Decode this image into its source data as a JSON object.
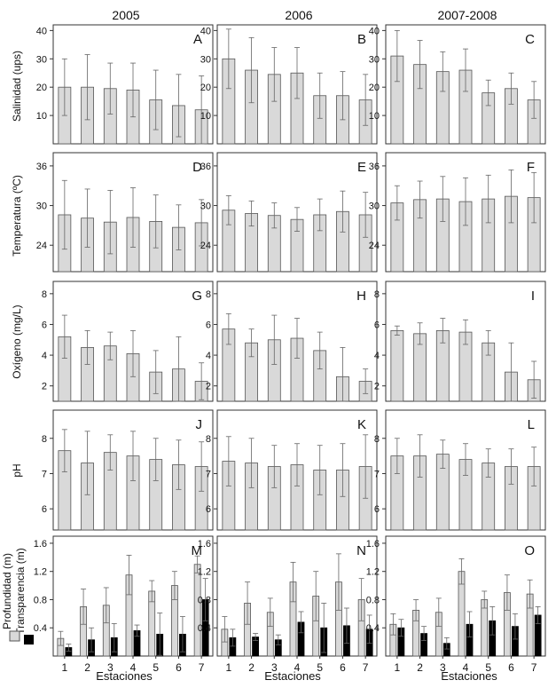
{
  "columns": [
    "2005",
    "2006",
    "2007-2008"
  ],
  "row_labels": [
    "Salinidad (ups)",
    "Temperatura (ºC)",
    "Oxígeno (mg/L)",
    "pH",
    [
      "Profundidad (m)",
      "Transparencia (m)"
    ]
  ],
  "x_title": "Estaciones",
  "colors": {
    "bar_light": "#d9d9d9",
    "bar_dark": "#000000",
    "stroke": "#555555"
  },
  "chart_data": [
    {
      "id": "A",
      "type": "bar",
      "row": 0,
      "col": 0,
      "ylim": [
        0,
        42
      ],
      "yticks": [
        10,
        20,
        30,
        40
      ],
      "categories": [
        "1",
        "2",
        "3",
        "4",
        "5",
        "6",
        "7"
      ],
      "series": [
        {
          "values": [
            20,
            20,
            19.5,
            19,
            15.5,
            13.5,
            12
          ],
          "errors": [
            10,
            11.5,
            9,
            9.5,
            10.5,
            11,
            12
          ]
        }
      ]
    },
    {
      "id": "B",
      "type": "bar",
      "row": 0,
      "col": 1,
      "ylim": [
        0,
        42
      ],
      "yticks": [
        10,
        20,
        30,
        40
      ],
      "categories": [
        "1",
        "2",
        "3",
        "4",
        "5",
        "6",
        "7"
      ],
      "series": [
        {
          "values": [
            30,
            26,
            24.5,
            25,
            17,
            17,
            15.5
          ],
          "errors": [
            10.5,
            11.5,
            9.5,
            9,
            8,
            8.5,
            9
          ]
        }
      ]
    },
    {
      "id": "C",
      "type": "bar",
      "row": 0,
      "col": 2,
      "ylim": [
        0,
        42
      ],
      "yticks": [
        10,
        20,
        30,
        40
      ],
      "categories": [
        "1",
        "2",
        "3",
        "4",
        "5",
        "6",
        "7"
      ],
      "series": [
        {
          "values": [
            31,
            28,
            25.5,
            26,
            18,
            19.5,
            15.5
          ],
          "errors": [
            9,
            8.5,
            7,
            7.5,
            4.5,
            5.5,
            6.5
          ]
        }
      ]
    },
    {
      "id": "D",
      "type": "bar",
      "row": 1,
      "col": 0,
      "ylim": [
        20,
        38
      ],
      "yticks": [
        24,
        30,
        36
      ],
      "categories": [
        "1",
        "2",
        "3",
        "4",
        "5",
        "6",
        "7"
      ],
      "series": [
        {
          "values": [
            28.6,
            28.1,
            27.5,
            28.2,
            27.6,
            26.7,
            27.4
          ],
          "errors": [
            5.2,
            4.4,
            4.8,
            4.5,
            4.0,
            3.4,
            3.5
          ]
        }
      ]
    },
    {
      "id": "E",
      "type": "bar",
      "row": 1,
      "col": 1,
      "ylim": [
        20,
        38
      ],
      "yticks": [
        24,
        30,
        36
      ],
      "categories": [
        "1",
        "2",
        "3",
        "4",
        "5",
        "6",
        "7"
      ],
      "series": [
        {
          "values": [
            29.3,
            28.8,
            28.5,
            27.9,
            28.6,
            29.1,
            28.6
          ],
          "errors": [
            2.2,
            1.9,
            1.9,
            1.8,
            2.4,
            3.1,
            3.4
          ]
        }
      ]
    },
    {
      "id": "F",
      "type": "bar",
      "row": 1,
      "col": 2,
      "ylim": [
        20,
        38
      ],
      "yticks": [
        24,
        30,
        36
      ],
      "categories": [
        "1",
        "2",
        "3",
        "4",
        "5",
        "6",
        "7"
      ],
      "series": [
        {
          "values": [
            30.4,
            30.9,
            31.0,
            30.6,
            31.0,
            31.4,
            31.2
          ],
          "errors": [
            2.6,
            2.8,
            3.4,
            3.6,
            3.6,
            4.0,
            3.8
          ]
        }
      ]
    },
    {
      "id": "G",
      "type": "bar",
      "row": 2,
      "col": 0,
      "ylim": [
        1,
        8.8
      ],
      "yticks": [
        2,
        4,
        6,
        8
      ],
      "categories": [
        "1",
        "2",
        "3",
        "4",
        "5",
        "6",
        "7"
      ],
      "series": [
        {
          "values": [
            5.2,
            4.5,
            4.6,
            4.1,
            2.9,
            3.1,
            2.3
          ],
          "errors": [
            1.4,
            1.1,
            0.9,
            1.5,
            1.4,
            2.1,
            1.2
          ]
        }
      ]
    },
    {
      "id": "H",
      "type": "bar",
      "row": 2,
      "col": 1,
      "ylim": [
        1,
        8.8
      ],
      "yticks": [
        2,
        4,
        6,
        8
      ],
      "categories": [
        "1",
        "2",
        "3",
        "4",
        "5",
        "6",
        "7"
      ],
      "series": [
        {
          "values": [
            5.7,
            4.8,
            5.0,
            5.1,
            4.3,
            2.6,
            2.3
          ],
          "errors": [
            1.0,
            0.9,
            1.6,
            1.3,
            1.2,
            1.9,
            0.8
          ]
        }
      ]
    },
    {
      "id": "I",
      "type": "bar",
      "row": 2,
      "col": 2,
      "ylim": [
        1,
        8.8
      ],
      "yticks": [
        2,
        4,
        6,
        8
      ],
      "categories": [
        "1",
        "2",
        "3",
        "4",
        "5",
        "6",
        "7"
      ],
      "series": [
        {
          "values": [
            5.6,
            5.4,
            5.6,
            5.5,
            4.8,
            2.9,
            2.4
          ],
          "errors": [
            0.3,
            0.7,
            0.8,
            0.8,
            0.8,
            1.9,
            1.2
          ]
        }
      ]
    },
    {
      "id": "J",
      "type": "bar",
      "row": 3,
      "col": 0,
      "ylim": [
        5.4,
        8.8
      ],
      "yticks": [
        6,
        7,
        8
      ],
      "categories": [
        "1",
        "2",
        "3",
        "4",
        "5",
        "6",
        "7"
      ],
      "series": [
        {
          "values": [
            7.65,
            7.3,
            7.6,
            7.5,
            7.4,
            7.25,
            7.2
          ],
          "errors": [
            0.6,
            0.9,
            0.5,
            0.7,
            0.6,
            0.7,
            0.7
          ]
        }
      ]
    },
    {
      "id": "K",
      "type": "bar",
      "row": 3,
      "col": 1,
      "ylim": [
        5.4,
        8.8
      ],
      "yticks": [
        6,
        7,
        8
      ],
      "categories": [
        "1",
        "2",
        "3",
        "4",
        "5",
        "6",
        "7"
      ],
      "series": [
        {
          "values": [
            7.35,
            7.3,
            7.2,
            7.25,
            7.1,
            7.1,
            7.2
          ],
          "errors": [
            0.7,
            0.7,
            0.6,
            0.6,
            0.7,
            0.75,
            0.9
          ]
        }
      ]
    },
    {
      "id": "L",
      "type": "bar",
      "row": 3,
      "col": 2,
      "ylim": [
        5.4,
        8.8
      ],
      "yticks": [
        6,
        7,
        8
      ],
      "categories": [
        "1",
        "2",
        "3",
        "4",
        "5",
        "6",
        "7"
      ],
      "series": [
        {
          "values": [
            7.5,
            7.5,
            7.55,
            7.4,
            7.3,
            7.2,
            7.2
          ],
          "errors": [
            0.5,
            0.6,
            0.4,
            0.45,
            0.4,
            0.5,
            0.55
          ]
        }
      ]
    },
    {
      "id": "M",
      "type": "bar",
      "row": 4,
      "col": 0,
      "ylim": [
        0,
        1.7
      ],
      "yticks": [
        0.4,
        0.8,
        1.2,
        1.6
      ],
      "categories": [
        "1",
        "2",
        "3",
        "4",
        "5",
        "6",
        "7"
      ],
      "series": [
        {
          "name": "Profundidad (m)",
          "values": [
            0.25,
            0.7,
            0.72,
            1.15,
            0.92,
            1.0,
            1.3
          ],
          "errors": [
            0.1,
            0.25,
            0.25,
            0.28,
            0.15,
            0.2,
            0.12
          ]
        },
        {
          "name": "Transparencia (m)",
          "values": [
            0.12,
            0.23,
            0.26,
            0.36,
            0.31,
            0.31,
            0.8
          ],
          "errors": [
            0.05,
            0.17,
            0.2,
            0.08,
            0.3,
            0.25,
            0.3
          ]
        }
      ]
    },
    {
      "id": "N",
      "type": "bar",
      "row": 4,
      "col": 1,
      "ylim": [
        0,
        1.7
      ],
      "yticks": [
        0.4,
        0.8,
        1.2,
        1.6
      ],
      "categories": [
        "1",
        "2",
        "3",
        "4",
        "5",
        "6",
        "7"
      ],
      "series": [
        {
          "name": "Profundidad (m)",
          "values": [
            0.38,
            0.75,
            0.62,
            1.05,
            0.85,
            1.05,
            0.8
          ],
          "errors": [
            0.18,
            0.3,
            0.2,
            0.28,
            0.35,
            0.4,
            0.3
          ]
        },
        {
          "name": "Transparencia (m)",
          "values": [
            0.26,
            0.27,
            0.23,
            0.48,
            0.4,
            0.43,
            0.38
          ],
          "errors": [
            0.12,
            0.05,
            0.07,
            0.15,
            0.35,
            0.25,
            0.2
          ]
        }
      ]
    },
    {
      "id": "O",
      "type": "bar",
      "row": 4,
      "col": 2,
      "ylim": [
        0,
        1.7
      ],
      "yticks": [
        0.4,
        0.8,
        1.2,
        1.6
      ],
      "categories": [
        "1",
        "2",
        "3",
        "4",
        "5",
        "6",
        "7"
      ],
      "series": [
        {
          "name": "Profundidad (m)",
          "values": [
            0.45,
            0.65,
            0.62,
            1.2,
            0.8,
            0.9,
            0.88
          ],
          "errors": [
            0.15,
            0.15,
            0.2,
            0.18,
            0.12,
            0.25,
            0.2
          ]
        },
        {
          "name": "Transparencia (m)",
          "values": [
            0.4,
            0.32,
            0.18,
            0.45,
            0.5,
            0.42,
            0.58
          ],
          "errors": [
            0.12,
            0.1,
            0.08,
            0.18,
            0.2,
            0.18,
            0.12
          ]
        }
      ]
    }
  ]
}
